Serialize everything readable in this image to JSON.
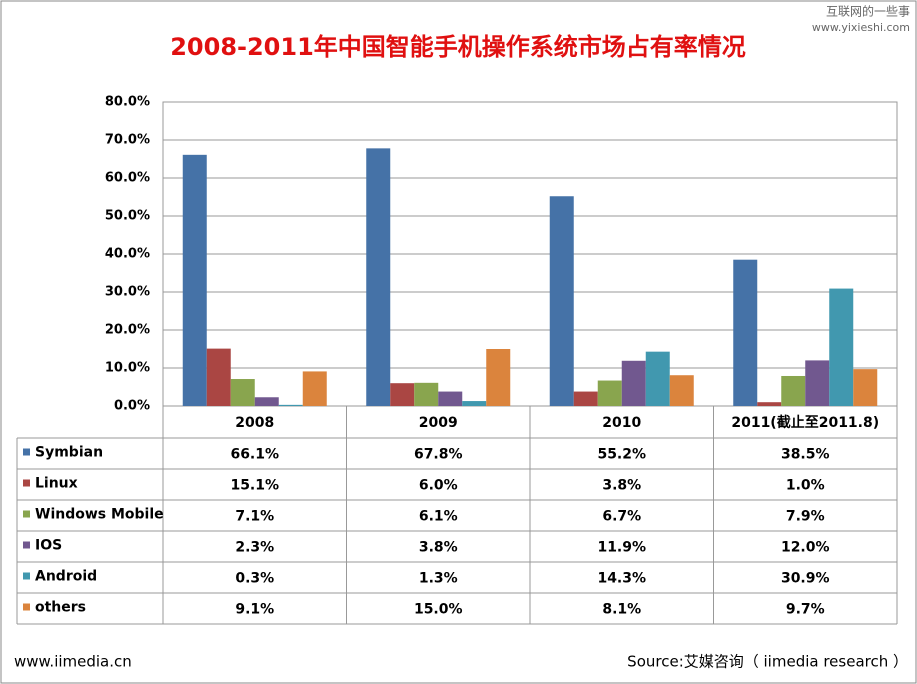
{
  "chart_data": {
    "type": "bar",
    "title": "2008-2011年中国智能手机操作系统市场占有率情况",
    "watermark": [
      "互联网的一些事",
      "www.yixieshi.com"
    ],
    "footer_left": "www.iimedia.cn",
    "source": "Source:艾媒咨询（ iimedia research ）",
    "categories": [
      "2008",
      "2009",
      "2010",
      "2011(截止至2011.8)"
    ],
    "ylim": [
      0,
      80
    ],
    "yticks": [
      {
        "value": 0,
        "label": "0.0%"
      },
      {
        "value": 10,
        "label": "10.0%"
      },
      {
        "value": 20,
        "label": "20.0%"
      },
      {
        "value": 30,
        "label": "30.0%"
      },
      {
        "value": 40,
        "label": "40.0%"
      },
      {
        "value": 50,
        "label": "50.0%"
      },
      {
        "value": 60,
        "label": "60.0%"
      },
      {
        "value": 70,
        "label": "70.0%"
      },
      {
        "value": 80,
        "label": "80.0%"
      }
    ],
    "grid": true,
    "series": [
      {
        "name": "Symbian",
        "color": "#4572a7",
        "values": [
          66.1,
          67.8,
          55.2,
          38.5
        ],
        "value_labels": [
          "66.1%",
          "67.8%",
          "55.2%",
          "38.5%"
        ]
      },
      {
        "name": "Linux",
        "color": "#aa4643",
        "values": [
          15.1,
          6.0,
          3.8,
          1.0
        ],
        "value_labels": [
          "15.1%",
          "6.0%",
          "3.8%",
          "1.0%"
        ]
      },
      {
        "name": "Windows Mobile",
        "color": "#89a54e",
        "values": [
          7.1,
          6.1,
          6.7,
          7.9
        ],
        "value_labels": [
          "7.1%",
          "6.1%",
          "6.7%",
          "7.9%"
        ]
      },
      {
        "name": "IOS",
        "color": "#71588f",
        "values": [
          2.3,
          3.8,
          11.9,
          12.0
        ],
        "value_labels": [
          "2.3%",
          "3.8%",
          "11.9%",
          "12.0%"
        ]
      },
      {
        "name": "Android",
        "color": "#4198af",
        "values": [
          0.3,
          1.3,
          14.3,
          30.9
        ],
        "value_labels": [
          "0.3%",
          "1.3%",
          "14.3%",
          "30.9%"
        ]
      },
      {
        "name": "others",
        "color": "#db843d",
        "values": [
          9.1,
          15.0,
          8.1,
          9.7
        ],
        "value_labels": [
          "9.1%",
          "15.0%",
          "8.1%",
          "9.7%"
        ]
      }
    ]
  }
}
